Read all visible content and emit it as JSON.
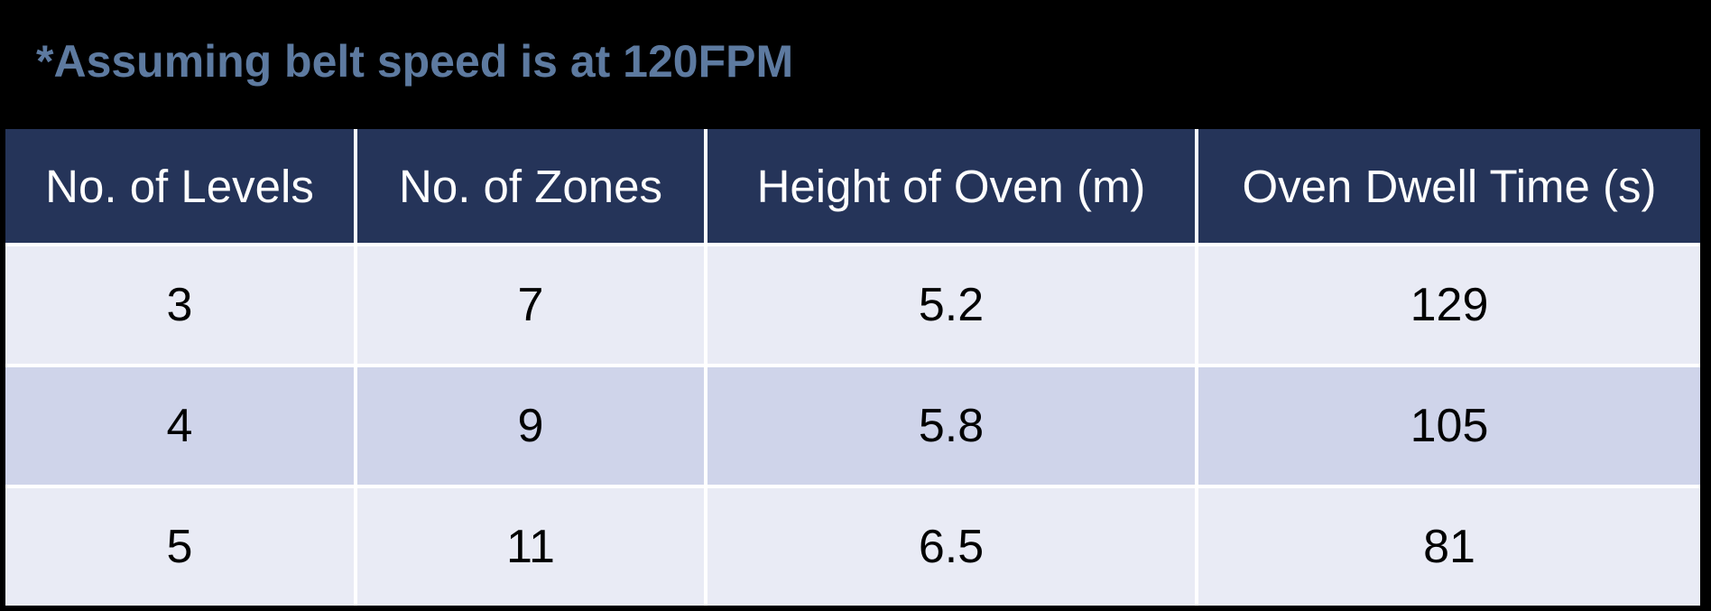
{
  "note": "*Assuming belt speed is at 120FPM",
  "table": {
    "headers": [
      "No. of Levels",
      "No. of Zones",
      "Height of Oven (m)",
      "Oven Dwell Time (s)"
    ],
    "rows": [
      [
        "3",
        "7",
        "5.2",
        "129"
      ],
      [
        "4",
        "9",
        "5.8",
        "105"
      ],
      [
        "5",
        "11",
        "6.5",
        "81"
      ]
    ]
  },
  "colors": {
    "header_bg": "#253459",
    "header_text": "#ffffff",
    "note_text": "#5d7aa0",
    "row_light": "#e9ebf5",
    "row_dark": "#cfd4ea",
    "background": "#000000"
  }
}
